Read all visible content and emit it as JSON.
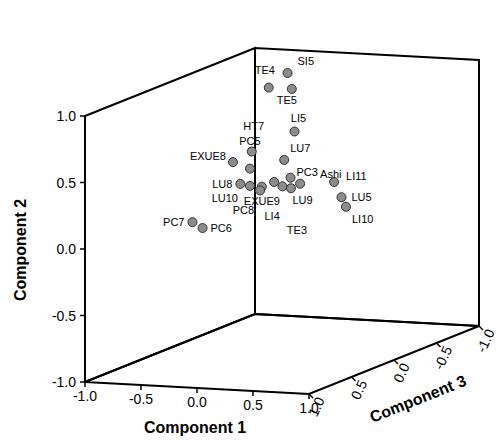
{
  "chart_data": {
    "type": "scatter",
    "x_label": "Component 1",
    "y_label": "Component 2",
    "z_label": "Component 3",
    "labels": [
      "TE4",
      "SI5",
      "TE5",
      "LI5",
      "HT7",
      "PC5",
      "EXUE8",
      "LU7",
      "PC3",
      "Ashi",
      "LU8",
      "LU10",
      "EXUE9",
      "PC8",
      "LI4",
      "LU9",
      "TE3",
      "LI11",
      "LU5",
      "LI10",
      "PC7",
      "PC6"
    ],
    "x": [
      -0.27,
      -0.33,
      -0.14,
      -0.04,
      -0.27,
      -0.21,
      -0.21,
      0.02,
      0.0,
      0.01,
      -0.22,
      -0.21,
      -0.18,
      -0.12,
      -0.07,
      0.08,
      0.08,
      0.01,
      0.0,
      0.04,
      -0.42,
      -0.33
    ],
    "values": [
      0.94,
      0.97,
      0.91,
      0.62,
      0.51,
      0.41,
      0.51,
      0.46,
      0.3,
      0.23,
      0.32,
      0.28,
      0.25,
      0.25,
      0.29,
      0.29,
      0.25,
      0.14,
      0.0,
      -0.07,
      0.1,
      0.06
    ],
    "z": [
      -0.2,
      -0.5,
      -0.3,
      -0.2,
      0.0,
      0.1,
      0.3,
      0.0,
      -0.1,
      -0.2,
      0.2,
      0.1,
      0.0,
      0.1,
      0.0,
      0.1,
      0.0,
      -0.6,
      -0.7,
      -0.7,
      0.5,
      0.5
    ],
    "xlim": [
      -1,
      1
    ],
    "ylim": [
      -1,
      1
    ],
    "zlim": [
      -1,
      1
    ],
    "xticks": [
      {
        "value": -1,
        "label": "-1.0"
      },
      -0.5,
      {
        "value": 0,
        "label": "0.0"
      },
      0.5,
      {
        "value": 1,
        "label": "1.0"
      }
    ],
    "yticks": [
      {
        "value": -1,
        "label": "-1.0"
      },
      -0.5,
      {
        "value": 0,
        "label": "0.0"
      },
      0.5,
      {
        "value": 1,
        "label": "1.0"
      }
    ],
    "zticks": [
      {
        "value": -1,
        "label": "-1.0"
      },
      -0.5,
      {
        "value": 0,
        "label": "0.0"
      },
      0.5,
      {
        "value": 1,
        "label": "1.0"
      }
    ],
    "color": "#8c8c8c",
    "marker": "circle",
    "grid": false
  }
}
